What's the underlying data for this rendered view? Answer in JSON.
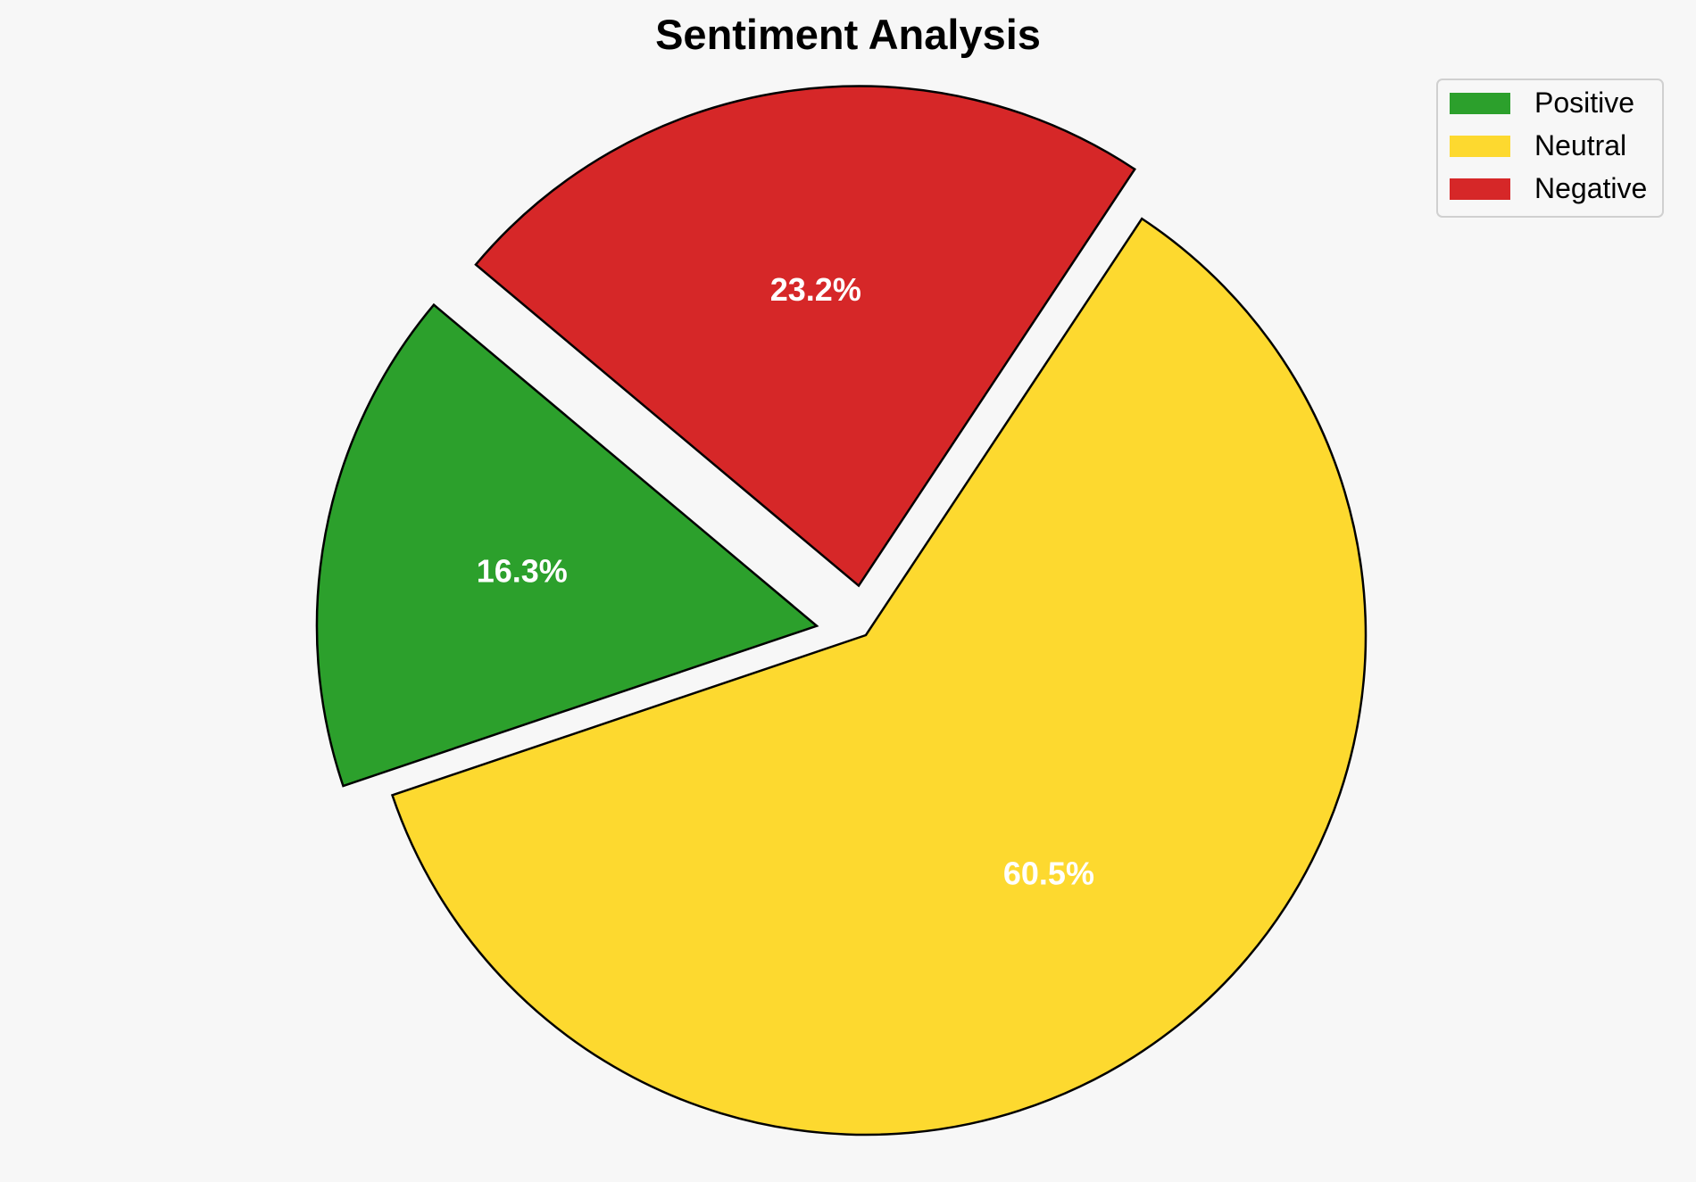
{
  "chart_data": {
    "type": "pie",
    "title": "Sentiment Analysis",
    "slices": [
      {
        "label": "Positive",
        "value": 16.3,
        "pct_label": "16.3%",
        "color": "#2ca02c"
      },
      {
        "label": "Neutral",
        "value": 60.5,
        "pct_label": "60.5%",
        "color": "#fdd92f"
      },
      {
        "label": "Negative",
        "value": 23.2,
        "pct_label": "23.2%",
        "color": "#d62728"
      }
    ],
    "exploded": [
      "Positive",
      "Negative"
    ],
    "start_angle_deg": 140,
    "direction": "counterclockwise",
    "edge_color": "#000000",
    "background_color": "#f7f7f7",
    "legend": {
      "placement": "top-right",
      "entries": [
        "Positive",
        "Neutral",
        "Negative"
      ]
    }
  }
}
